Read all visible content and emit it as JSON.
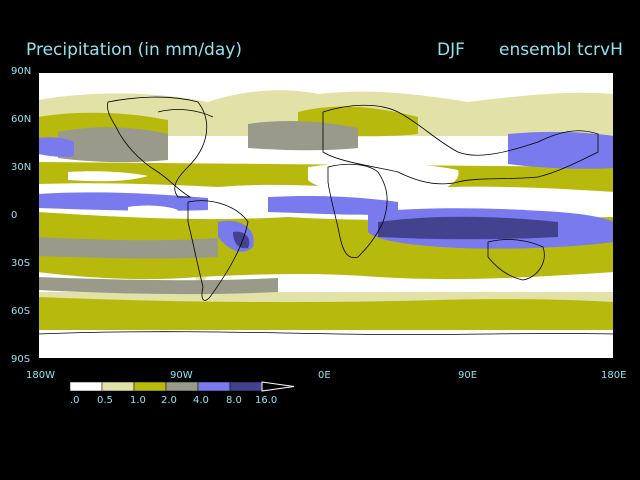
{
  "header": {
    "title": "Precipitation (in mm/day)",
    "season": "DJF",
    "run": "ensembl tcrvH"
  },
  "axes": {
    "lat_labels": [
      "90N",
      "60N",
      "30N",
      "0",
      "30S",
      "60S",
      "90S"
    ],
    "lon_labels": [
      "180W",
      "90W",
      "0E",
      "90E",
      "180E"
    ]
  },
  "colorbar": {
    "levels": [
      ".0",
      "0.5",
      "1.0",
      "2.0",
      "4.0",
      "8.0",
      "16.0"
    ],
    "colors": [
      "#ffffff",
      "#e2e2a8",
      "#b7ba0c",
      "#9a9a8a",
      "#7a7aef",
      "#42428e"
    ]
  },
  "colors": {
    "background": "#000000",
    "label_text": "#8fe3f0",
    "coastline": "#000000"
  }
}
